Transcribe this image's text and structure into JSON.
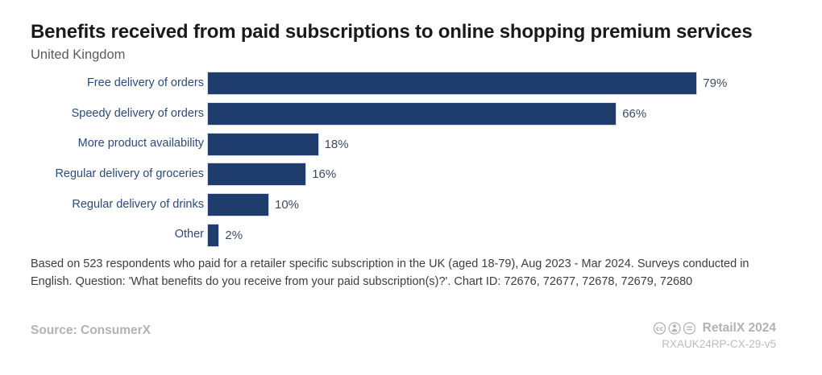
{
  "header": {
    "title": "Benefits received from paid subscriptions to online shopping premium services",
    "subtitle": "United Kingdom"
  },
  "chart_data": {
    "type": "bar",
    "orientation": "horizontal",
    "title": "Benefits received from paid subscriptions to online shopping premium services",
    "subtitle": "United Kingdom",
    "categories": [
      "Free delivery of orders",
      "Speedy delivery of orders",
      "More product availability",
      "Regular delivery of groceries",
      "Regular delivery of drinks",
      "Other"
    ],
    "values": [
      79,
      66,
      18,
      16,
      10,
      2
    ],
    "value_labels": [
      "79%",
      "66%",
      "18%",
      "16%",
      "10%",
      "2%"
    ],
    "unit": "%",
    "xlim": [
      0,
      100
    ],
    "grid": false,
    "legend": false,
    "bar_color": "#1f3d6c",
    "bar_border_color": "#d6dbe4",
    "label_color": "#2c4a7a",
    "value_label_color": "#3c4b61"
  },
  "footnote": "Based on 523 respondents who paid for a retailer specific subscription in the UK (aged 18-79), Aug 2023 - Mar 2024. Surveys conducted in English. Question: 'What benefits do you receive from your paid subscription(s)?'. Chart ID: 72676, 72677, 72678, 72679, 72680",
  "footer": {
    "source": "Source: ConsumerX",
    "brand": "RetailX 2024",
    "chart_code": "RXAUK24RP-CX-29-v5",
    "license_icons": [
      "cc-icon",
      "cc-by-icon",
      "cc-nd-icon"
    ],
    "footer_text_color": "#b2b2b2"
  }
}
